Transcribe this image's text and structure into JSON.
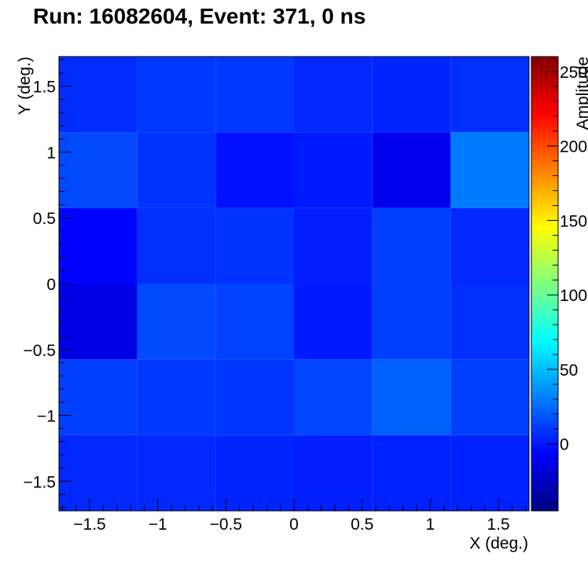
{
  "chart_data": {
    "type": "heatmap",
    "title": "Run: 16082604, Event: 371, 0 ns",
    "xlabel": "X (deg.)",
    "ylabel": "Y (deg.)",
    "zlabel": "Amplitude",
    "xlim": [
      -1.725,
      1.725
    ],
    "ylim": [
      -1.725,
      1.725
    ],
    "zlim": [
      -45,
      260
    ],
    "x_edges": [
      -1.725,
      -1.15,
      -0.575,
      0,
      0.575,
      1.15,
      1.725
    ],
    "y_edges": [
      -1.725,
      -1.15,
      -0.575,
      0,
      0.575,
      1.15,
      1.725
    ],
    "x_ticks": [
      -1.5,
      -1,
      -0.5,
      0,
      0.5,
      1,
      1.5
    ],
    "x_tick_labels": [
      "−1.5",
      "−1",
      "−0.5",
      "0",
      "0.5",
      "1",
      "1.5"
    ],
    "y_ticks": [
      -1.5,
      -1,
      -0.5,
      0,
      0.5,
      1,
      1.5
    ],
    "y_tick_labels": [
      "−1.5",
      "−1",
      "−0.5",
      "0",
      "0.5",
      "1",
      "1.5"
    ],
    "z_ticks": [
      0,
      50,
      100,
      150,
      200,
      250
    ],
    "z_tick_labels": [
      "0",
      "50",
      "100",
      "150",
      "200",
      "250"
    ],
    "values": [
      [
        5,
        5,
        4,
        2,
        3,
        3
      ],
      [
        12,
        10,
        9,
        14,
        22,
        12
      ],
      [
        -14,
        15,
        13,
        1,
        12,
        7
      ],
      [
        -6,
        7,
        8,
        2,
        12,
        5
      ],
      [
        15,
        8,
        -2,
        1,
        -12,
        30
      ],
      [
        6,
        10,
        10,
        5,
        4,
        7
      ]
    ],
    "grid": false,
    "colormap": "jet"
  }
}
